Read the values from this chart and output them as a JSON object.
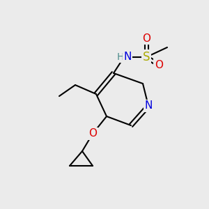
{
  "bg_color": "#ebebeb",
  "bond_color": "#000000",
  "bond_lw": 1.5,
  "atom_colors": {
    "N": "#0000dd",
    "O": "#dd0000",
    "S": "#aaaa00",
    "H": "#4a8a8a",
    "C": "#000000"
  },
  "font_size": 11,
  "font_size_small": 9
}
